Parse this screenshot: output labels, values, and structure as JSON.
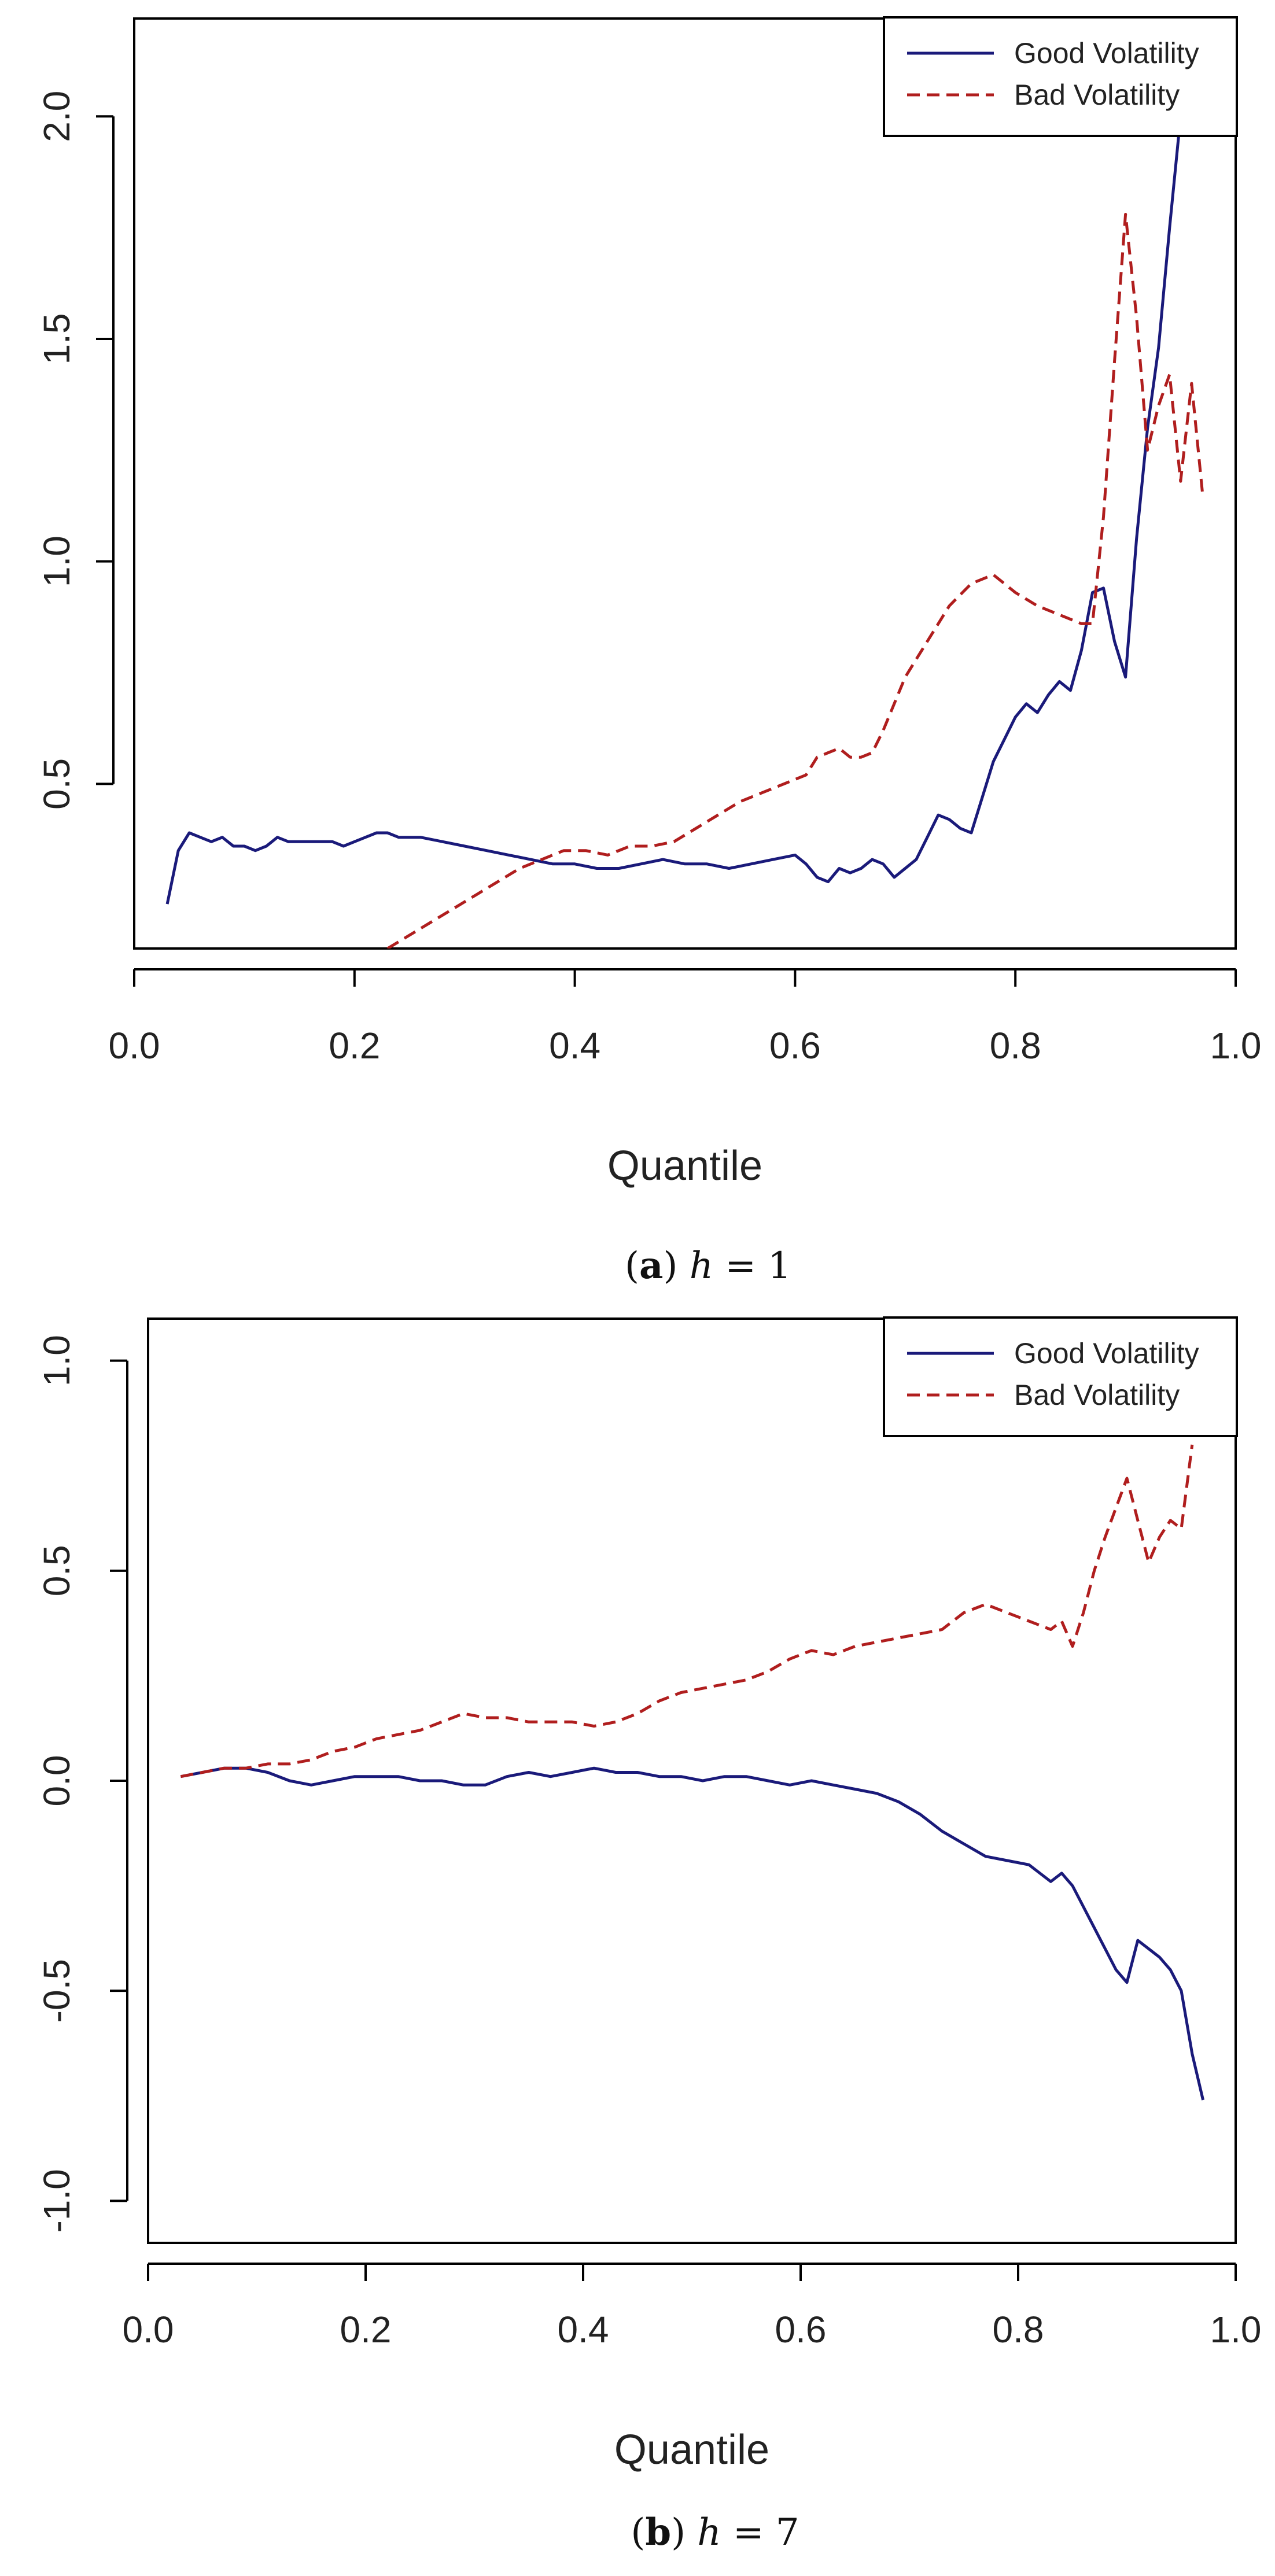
{
  "chart_data": [
    {
      "type": "line",
      "caption": {
        "prefix": "(",
        "letter": "a",
        "suffix": ")",
        "var": "h",
        "eq": " = ",
        "value": "1"
      },
      "xlabel": "Quantile",
      "ylabel": "",
      "xlim": [
        0.0,
        1.0
      ],
      "ylim": [
        0.13,
        2.22
      ],
      "xticks": [
        0.0,
        0.2,
        0.4,
        0.6,
        0.8,
        1.0
      ],
      "xtick_labels": [
        "0.0",
        "0.2",
        "0.4",
        "0.6",
        "0.8",
        "1.0"
      ],
      "yticks": [
        0.5,
        1.0,
        1.5,
        2.0
      ],
      "ytick_labels": [
        "0.5",
        "1.0",
        "1.5",
        "2.0"
      ],
      "legend_position": "top-right",
      "series": [
        {
          "name": "Good Volatility",
          "color": "#1a1a7a",
          "dash": "solid",
          "x": [
            0.03,
            0.04,
            0.05,
            0.06,
            0.07,
            0.08,
            0.09,
            0.1,
            0.11,
            0.12,
            0.13,
            0.14,
            0.15,
            0.16,
            0.17,
            0.18,
            0.19,
            0.2,
            0.21,
            0.22,
            0.23,
            0.24,
            0.26,
            0.28,
            0.3,
            0.32,
            0.34,
            0.36,
            0.38,
            0.4,
            0.42,
            0.44,
            0.46,
            0.48,
            0.5,
            0.52,
            0.54,
            0.56,
            0.58,
            0.6,
            0.61,
            0.62,
            0.63,
            0.64,
            0.65,
            0.66,
            0.67,
            0.68,
            0.69,
            0.7,
            0.71,
            0.72,
            0.73,
            0.74,
            0.75,
            0.76,
            0.77,
            0.78,
            0.79,
            0.8,
            0.81,
            0.82,
            0.83,
            0.84,
            0.85,
            0.86,
            0.87,
            0.88,
            0.89,
            0.9,
            0.91,
            0.92,
            0.93,
            0.94,
            0.95
          ],
          "y": [
            0.23,
            0.35,
            0.39,
            0.38,
            0.37,
            0.38,
            0.36,
            0.36,
            0.35,
            0.36,
            0.38,
            0.37,
            0.37,
            0.37,
            0.37,
            0.37,
            0.36,
            0.37,
            0.38,
            0.39,
            0.39,
            0.38,
            0.38,
            0.37,
            0.36,
            0.35,
            0.34,
            0.33,
            0.32,
            0.32,
            0.31,
            0.31,
            0.32,
            0.33,
            0.32,
            0.32,
            0.31,
            0.32,
            0.33,
            0.34,
            0.32,
            0.29,
            0.28,
            0.31,
            0.3,
            0.31,
            0.33,
            0.32,
            0.29,
            0.31,
            0.33,
            0.38,
            0.43,
            0.42,
            0.4,
            0.39,
            0.47,
            0.55,
            0.6,
            0.65,
            0.68,
            0.66,
            0.7,
            0.73,
            0.71,
            0.8,
            0.93,
            0.94,
            0.82,
            0.74,
            1.05,
            1.3,
            1.48,
            1.75,
            2.0
          ]
        },
        {
          "name": "Bad Volatility",
          "color": "#b01e1e",
          "dash": "dashed",
          "x": [
            0.23,
            0.25,
            0.27,
            0.29,
            0.31,
            0.33,
            0.35,
            0.37,
            0.39,
            0.41,
            0.43,
            0.45,
            0.47,
            0.49,
            0.51,
            0.53,
            0.55,
            0.57,
            0.59,
            0.61,
            0.62,
            0.63,
            0.64,
            0.65,
            0.66,
            0.67,
            0.68,
            0.69,
            0.7,
            0.72,
            0.74,
            0.76,
            0.78,
            0.8,
            0.82,
            0.84,
            0.86,
            0.87,
            0.88,
            0.89,
            0.9,
            0.91,
            0.92,
            0.93,
            0.94,
            0.95,
            0.96,
            0.97
          ],
          "y": [
            0.13,
            0.16,
            0.19,
            0.22,
            0.25,
            0.28,
            0.31,
            0.33,
            0.35,
            0.35,
            0.34,
            0.36,
            0.36,
            0.37,
            0.4,
            0.43,
            0.46,
            0.48,
            0.5,
            0.52,
            0.56,
            0.57,
            0.58,
            0.56,
            0.56,
            0.57,
            0.62,
            0.68,
            0.74,
            0.82,
            0.9,
            0.95,
            0.97,
            0.93,
            0.9,
            0.88,
            0.86,
            0.86,
            1.1,
            1.45,
            1.78,
            1.55,
            1.25,
            1.35,
            1.42,
            1.18,
            1.4,
            1.15
          ]
        }
      ]
    },
    {
      "type": "line",
      "caption": {
        "prefix": "(",
        "letter": "b",
        "suffix": ")",
        "var": "h",
        "eq": " = ",
        "value": "7"
      },
      "xlabel": "Quantile",
      "ylabel": "",
      "xlim": [
        0.0,
        1.0
      ],
      "ylim": [
        -1.1,
        1.1
      ],
      "xticks": [
        0.0,
        0.2,
        0.4,
        0.6,
        0.8,
        1.0
      ],
      "xtick_labels": [
        "0.0",
        "0.2",
        "0.4",
        "0.6",
        "0.8",
        "1.0"
      ],
      "yticks": [
        -1.0,
        -0.5,
        0.0,
        0.5,
        1.0
      ],
      "ytick_labels": [
        "-1.0",
        "-0.5",
        "0.0",
        "0.5",
        "1.0"
      ],
      "legend_position": "top-right",
      "series": [
        {
          "name": "Good Volatility",
          "color": "#1a1a7a",
          "dash": "solid",
          "x": [
            0.03,
            0.05,
            0.07,
            0.09,
            0.11,
            0.13,
            0.15,
            0.17,
            0.19,
            0.21,
            0.23,
            0.25,
            0.27,
            0.29,
            0.31,
            0.33,
            0.35,
            0.37,
            0.39,
            0.41,
            0.43,
            0.45,
            0.47,
            0.49,
            0.51,
            0.53,
            0.55,
            0.57,
            0.59,
            0.61,
            0.63,
            0.65,
            0.67,
            0.69,
            0.71,
            0.73,
            0.75,
            0.77,
            0.79,
            0.81,
            0.83,
            0.84,
            0.85,
            0.86,
            0.87,
            0.88,
            0.89,
            0.9,
            0.91,
            0.92,
            0.93,
            0.94,
            0.95,
            0.96,
            0.97
          ],
          "y": [
            0.01,
            0.02,
            0.03,
            0.03,
            0.02,
            0.0,
            -0.01,
            0.0,
            0.01,
            0.01,
            0.01,
            0.0,
            0.0,
            -0.01,
            -0.01,
            0.01,
            0.02,
            0.01,
            0.02,
            0.03,
            0.02,
            0.02,
            0.01,
            0.01,
            0.0,
            0.01,
            0.01,
            0.0,
            -0.01,
            0.0,
            -0.01,
            -0.02,
            -0.03,
            -0.05,
            -0.08,
            -0.12,
            -0.15,
            -0.18,
            -0.19,
            -0.2,
            -0.24,
            -0.22,
            -0.25,
            -0.3,
            -0.35,
            -0.4,
            -0.45,
            -0.48,
            -0.38,
            -0.4,
            -0.42,
            -0.45,
            -0.5,
            -0.65,
            -0.76
          ]
        },
        {
          "name": "Bad Volatility",
          "color": "#b01e1e",
          "dash": "dashed",
          "x": [
            0.03,
            0.05,
            0.07,
            0.09,
            0.11,
            0.13,
            0.15,
            0.17,
            0.19,
            0.21,
            0.23,
            0.25,
            0.27,
            0.29,
            0.31,
            0.33,
            0.35,
            0.37,
            0.39,
            0.41,
            0.43,
            0.45,
            0.47,
            0.49,
            0.51,
            0.53,
            0.55,
            0.57,
            0.59,
            0.61,
            0.63,
            0.65,
            0.67,
            0.69,
            0.71,
            0.73,
            0.75,
            0.77,
            0.79,
            0.81,
            0.83,
            0.84,
            0.85,
            0.86,
            0.87,
            0.88,
            0.89,
            0.9,
            0.91,
            0.92,
            0.93,
            0.94,
            0.95,
            0.96
          ],
          "y": [
            0.01,
            0.02,
            0.03,
            0.03,
            0.04,
            0.04,
            0.05,
            0.07,
            0.08,
            0.1,
            0.11,
            0.12,
            0.14,
            0.16,
            0.15,
            0.15,
            0.14,
            0.14,
            0.14,
            0.13,
            0.14,
            0.16,
            0.19,
            0.21,
            0.22,
            0.23,
            0.24,
            0.26,
            0.29,
            0.31,
            0.3,
            0.32,
            0.33,
            0.34,
            0.35,
            0.36,
            0.4,
            0.42,
            0.4,
            0.38,
            0.36,
            0.38,
            0.32,
            0.4,
            0.5,
            0.58,
            0.65,
            0.72,
            0.62,
            0.52,
            0.58,
            0.62,
            0.6,
            0.8
          ]
        }
      ]
    }
  ]
}
